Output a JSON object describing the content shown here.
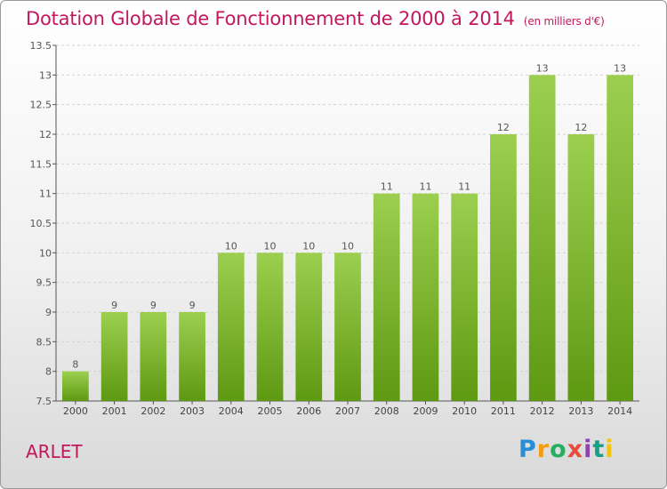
{
  "header": {
    "title": "Dotation Globale de Fonctionnement de 2000 à 2014",
    "subtitle": "(en milliers d'€)"
  },
  "footer": {
    "commune": "ARLET",
    "logo": "Proxiti"
  },
  "colors": {
    "title": "#c2185b",
    "bar_top": "#9ccf4f",
    "bar_bottom": "#5e9912"
  },
  "chart_data": {
    "type": "bar",
    "title": "Dotation Globale de Fonctionnement de 2000 à 2014",
    "subtitle": "(en milliers d'€)",
    "xlabel": "",
    "ylabel": "",
    "categories": [
      "2000",
      "2001",
      "2002",
      "2003",
      "2004",
      "2005",
      "2006",
      "2007",
      "2008",
      "2009",
      "2010",
      "2011",
      "2012",
      "2013",
      "2014"
    ],
    "values": [
      8,
      9,
      9,
      9,
      10,
      10,
      10,
      10,
      11,
      11,
      11,
      12,
      13,
      12,
      13
    ],
    "ylim": [
      7.5,
      13.5
    ],
    "yticks": [
      "7.5",
      "8",
      "8.5",
      "9",
      "9.5",
      "10",
      "10.5",
      "11",
      "11.5",
      "12",
      "12.5",
      "13",
      "13.5"
    ],
    "grid": true,
    "legend": "none"
  }
}
